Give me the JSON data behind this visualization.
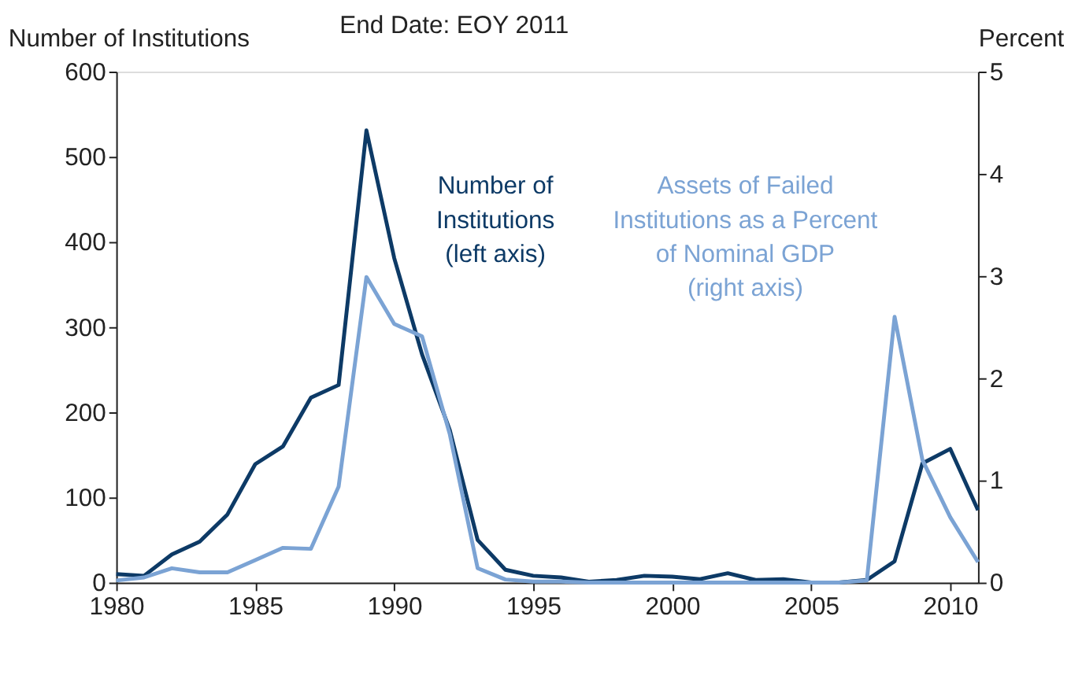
{
  "chart_data": {
    "type": "line",
    "title": "End Date: EOY 2011",
    "ylabel": "Number of Institutions",
    "y2label": "Percent",
    "x": [
      1980,
      1981,
      1982,
      1983,
      1984,
      1985,
      1986,
      1987,
      1988,
      1989,
      1990,
      1991,
      1992,
      1993,
      1994,
      1995,
      1996,
      1997,
      1998,
      1999,
      2000,
      2001,
      2002,
      2003,
      2004,
      2005,
      2006,
      2007,
      2008,
      2009,
      2010,
      2011
    ],
    "series": [
      {
        "color": "#0d3a66",
        "values": [
          10,
          8,
          33,
          48,
          80,
          139,
          160,
          217,
          232,
          531,
          381,
          268,
          179,
          50,
          15,
          8,
          6,
          1,
          3,
          8,
          7,
          4,
          11,
          3,
          4,
          0,
          0,
          3,
          25,
          140,
          157,
          85
        ]
      },
      {
        "color": "#7ba3d4",
        "axis": "y2",
        "values": [
          0.02,
          0.05,
          0.14,
          0.1,
          0.1,
          0.22,
          0.34,
          0.33,
          0.94,
          2.99,
          2.53,
          2.41,
          1.45,
          0.14,
          0.03,
          0.01,
          0.01,
          0,
          0,
          0,
          0,
          0,
          0,
          0,
          0,
          0,
          0,
          0.02,
          2.6,
          1.2,
          0.64,
          0.2
        ]
      }
    ],
    "annotations": [
      "Number of\nInstitutions\n(left axis)",
      "Assets of Failed\nInstitutions as a Percent\nof Nominal GDP\n(right axis)"
    ],
    "xlim": [
      1980,
      2011
    ],
    "xticks": [
      1980,
      1985,
      1990,
      1995,
      2000,
      2005,
      2010
    ],
    "ylim": [
      0,
      600
    ],
    "yticks": [
      0,
      100,
      200,
      300,
      400,
      500,
      600
    ],
    "y2lim": [
      0,
      5
    ],
    "y2ticks": [
      0,
      1,
      2,
      3,
      4,
      5
    ],
    "grid": false,
    "marker": "none",
    "line_style": "solid"
  }
}
